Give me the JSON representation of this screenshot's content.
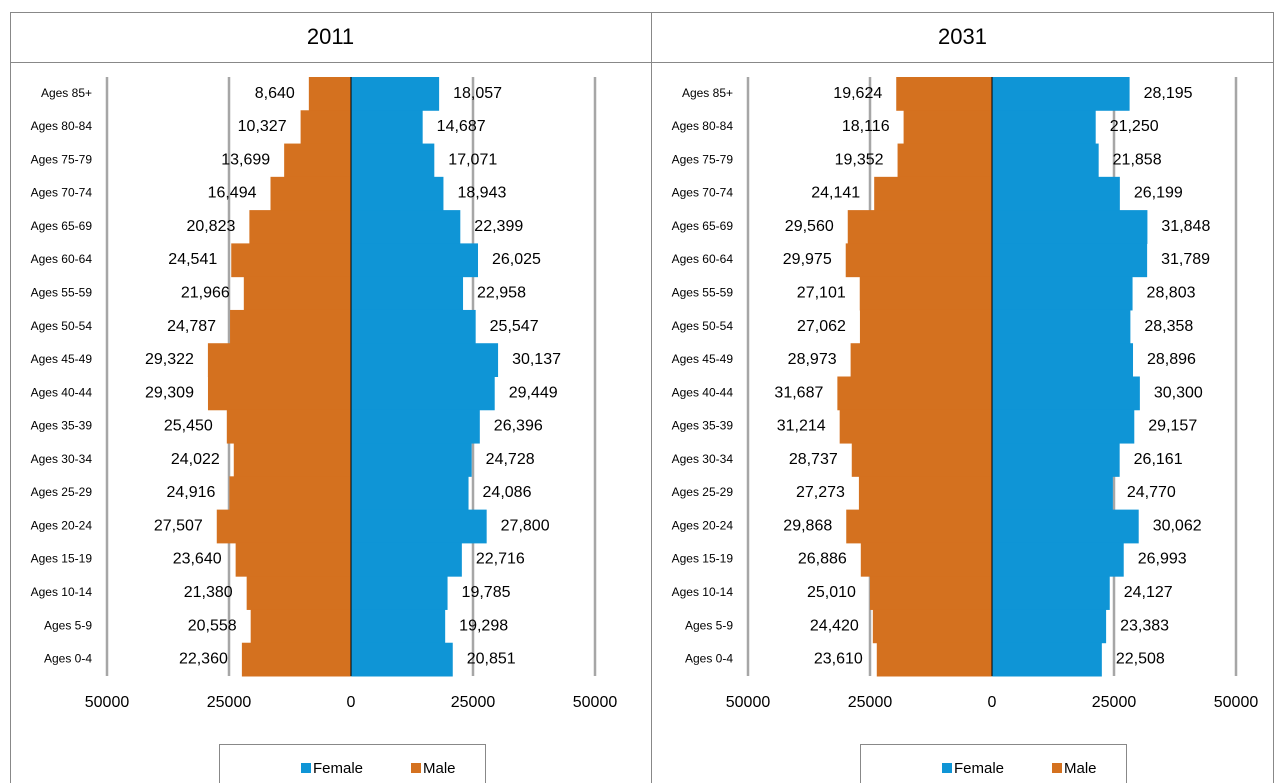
{
  "chart_data": [
    {
      "type": "bar",
      "orientation": "horizontal",
      "title": "2011",
      "categories": [
        "Ages 85+",
        "Ages 80-84",
        "Ages 75-79",
        "Ages 70-74",
        "Ages 65-69",
        "Ages 60-64",
        "Ages 55-59",
        "Ages 50-54",
        "Ages 45-49",
        "Ages 40-44",
        "Ages 35-39",
        "Ages 30-34",
        "Ages 25-29",
        "Ages 20-24",
        "Ages 15-19",
        "Ages 10-14",
        "Ages 5-9",
        "Ages 0-4"
      ],
      "series": [
        {
          "name": "Female",
          "color": "#0f95d6",
          "values": [
            18057,
            14687,
            17071,
            18943,
            22399,
            26025,
            22958,
            25547,
            30137,
            29449,
            26396,
            24728,
            24086,
            27800,
            22716,
            19785,
            19298,
            20851
          ],
          "value_labels": [
            "18,057",
            "14,687",
            "17,071",
            "18,943",
            "22,399",
            "26,025",
            "22,958",
            "25,547",
            "30,137",
            "29,449",
            "26,396",
            "24,728",
            "24,086",
            "27,800",
            "22,716",
            "19,785",
            "19,298",
            "20,851"
          ]
        },
        {
          "name": "Male",
          "color": "#d4711f",
          "values": [
            -8640,
            -10327,
            -13699,
            -16494,
            -20823,
            -24541,
            -21966,
            -24787,
            -29322,
            -29309,
            -25450,
            -24022,
            -24916,
            -27507,
            -23640,
            -21380,
            -20558,
            -22360
          ],
          "value_labels": [
            "8,640",
            "10,327",
            "13,699",
            "16,494",
            "20,823",
            "24,541",
            "21,966",
            "24,787",
            "29,322",
            "29,309",
            "25,450",
            "24,022",
            "24,916",
            "27,507",
            "23,640",
            "21,380",
            "20,558",
            "22,360"
          ]
        }
      ],
      "xlim": [
        -50000,
        50000
      ],
      "xticks": [
        {
          "value": -50000,
          "label": "50000"
        },
        {
          "value": -25000,
          "label": "25000"
        },
        0,
        25000,
        50000
      ],
      "grid": true,
      "legend": "bottom"
    },
    {
      "type": "bar",
      "orientation": "horizontal",
      "title": "2031",
      "categories": [
        "Ages 85+",
        "Ages 80-84",
        "Ages 75-79",
        "Ages 70-74",
        "Ages 65-69",
        "Ages 60-64",
        "Ages 55-59",
        "Ages 50-54",
        "Ages 45-49",
        "Ages 40-44",
        "Ages 35-39",
        "Ages 30-34",
        "Ages 25-29",
        "Ages 20-24",
        "Ages 15-19",
        "Ages 10-14",
        "Ages 5-9",
        "Ages 0-4"
      ],
      "series": [
        {
          "name": "Female",
          "color": "#0f95d6",
          "values": [
            28195,
            21250,
            21858,
            26199,
            31848,
            31789,
            28803,
            28358,
            28896,
            30300,
            29157,
            26161,
            24770,
            30062,
            26993,
            24127,
            23383,
            22508
          ],
          "value_labels": [
            "28,195",
            "21,250",
            "21,858",
            "26,199",
            "31,848",
            "31,789",
            "28,803",
            "28,358",
            "28,896",
            "30,300",
            "29,157",
            "26,161",
            "24,770",
            "30,062",
            "26,993",
            "24,127",
            "23,383",
            "22,508"
          ]
        },
        {
          "name": "Male",
          "color": "#d4711f",
          "values": [
            -19624,
            -18116,
            -19352,
            -24141,
            -29560,
            -29975,
            -27101,
            -27062,
            -28973,
            -31687,
            -31214,
            -28737,
            -27273,
            -29868,
            -26886,
            -25010,
            -24420,
            -23610
          ],
          "value_labels": [
            "19,624",
            "18,116",
            "19,352",
            "24,141",
            "29,560",
            "29,975",
            "27,101",
            "27,062",
            "28,973",
            "31,687",
            "31,214",
            "28,737",
            "27,273",
            "29,868",
            "26,886",
            "25,010",
            "24,420",
            "23,610"
          ]
        }
      ],
      "xlim": [
        -50000,
        50000
      ],
      "xticks": [
        {
          "value": -50000,
          "label": "50000"
        },
        {
          "value": -25000,
          "label": "25000"
        },
        0,
        25000,
        50000
      ],
      "grid": true,
      "legend": "bottom"
    }
  ]
}
